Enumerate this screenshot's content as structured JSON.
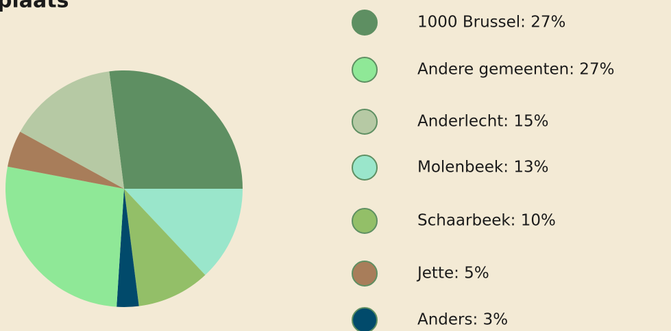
{
  "chart_data": {
    "type": "pie",
    "title": "plaats",
    "categories": [
      "1000 Brussel: 27%",
      "Andere gemeenten: 27%",
      "Anderlecht: 15%",
      "Molenbeek: 13%",
      "Schaarbeek: 10%",
      "Jette: 5%",
      "Anders: 3%"
    ],
    "values": [
      27,
      27,
      15,
      13,
      10,
      5,
      3
    ],
    "colors": [
      "#5e8f62",
      "#8fe897",
      "#b6c9a4",
      "#9ae6cb",
      "#93bf68",
      "#a87d5a",
      "#014a6b"
    ],
    "legend": "right"
  }
}
